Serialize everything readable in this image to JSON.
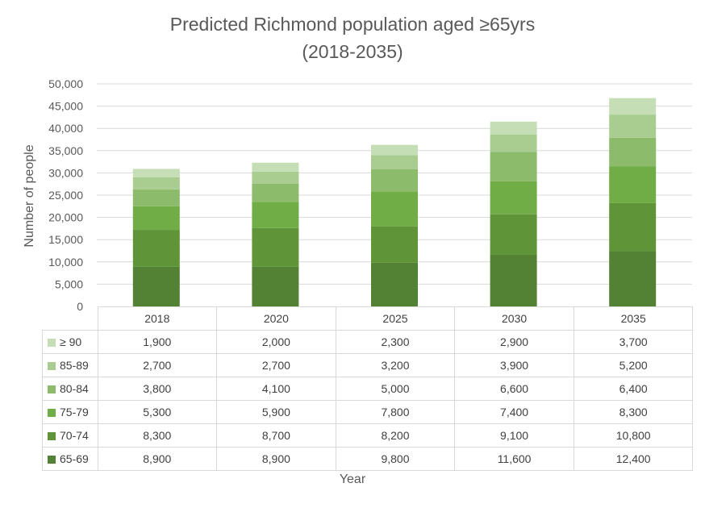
{
  "chart_data": {
    "type": "bar",
    "stacked": true,
    "title": "Predicted Richmond population aged ≥65yrs",
    "subtitle": "(2018-2035)",
    "xlabel": "Year",
    "ylabel": "Number of people",
    "ylim": [
      0,
      50000
    ],
    "yticks": [
      "50,000",
      "45,000",
      "40,000",
      "35,000",
      "30,000",
      "25,000",
      "20,000",
      "15,000",
      "10,000",
      "5,000",
      "0"
    ],
    "ytick_values": [
      50000,
      45000,
      40000,
      35000,
      30000,
      25000,
      20000,
      15000,
      10000,
      5000,
      0
    ],
    "grid": true,
    "legend": "data-table",
    "categories": [
      "2018",
      "2020",
      "2025",
      "2030",
      "2035"
    ],
    "series": [
      {
        "name": "65-69",
        "color": "#548235",
        "values": [
          8900,
          8900,
          9800,
          11600,
          12400
        ],
        "labels": [
          "8,900",
          "8,900",
          "9,800",
          "11,600",
          "12,400"
        ]
      },
      {
        "name": "70-74",
        "color": "#5f9538",
        "values": [
          8300,
          8700,
          8200,
          9100,
          10800
        ],
        "labels": [
          "8,300",
          "8,700",
          "8,200",
          "9,100",
          "10,800"
        ]
      },
      {
        "name": "75-79",
        "color": "#70ad47",
        "values": [
          5300,
          5900,
          7800,
          7400,
          8300
        ],
        "labels": [
          "5,300",
          "5,900",
          "7,800",
          "7,400",
          "8,300"
        ]
      },
      {
        "name": "80-84",
        "color": "#8cbb6c",
        "values": [
          3800,
          4100,
          5000,
          6600,
          6400
        ],
        "labels": [
          "3,800",
          "4,100",
          "5,000",
          "6,600",
          "6,400"
        ]
      },
      {
        "name": "85-89",
        "color": "#a9cd91",
        "values": [
          2700,
          2700,
          3200,
          3900,
          5200
        ],
        "labels": [
          "2,700",
          "2,700",
          "3,200",
          "3,900",
          "5,200"
        ]
      },
      {
        "name": "≥ 90",
        "color": "#c5deb5",
        "values": [
          1900,
          2000,
          2300,
          2900,
          3700
        ],
        "labels": [
          "1,900",
          "2,000",
          "2,300",
          "2,900",
          "3,700"
        ]
      }
    ]
  }
}
